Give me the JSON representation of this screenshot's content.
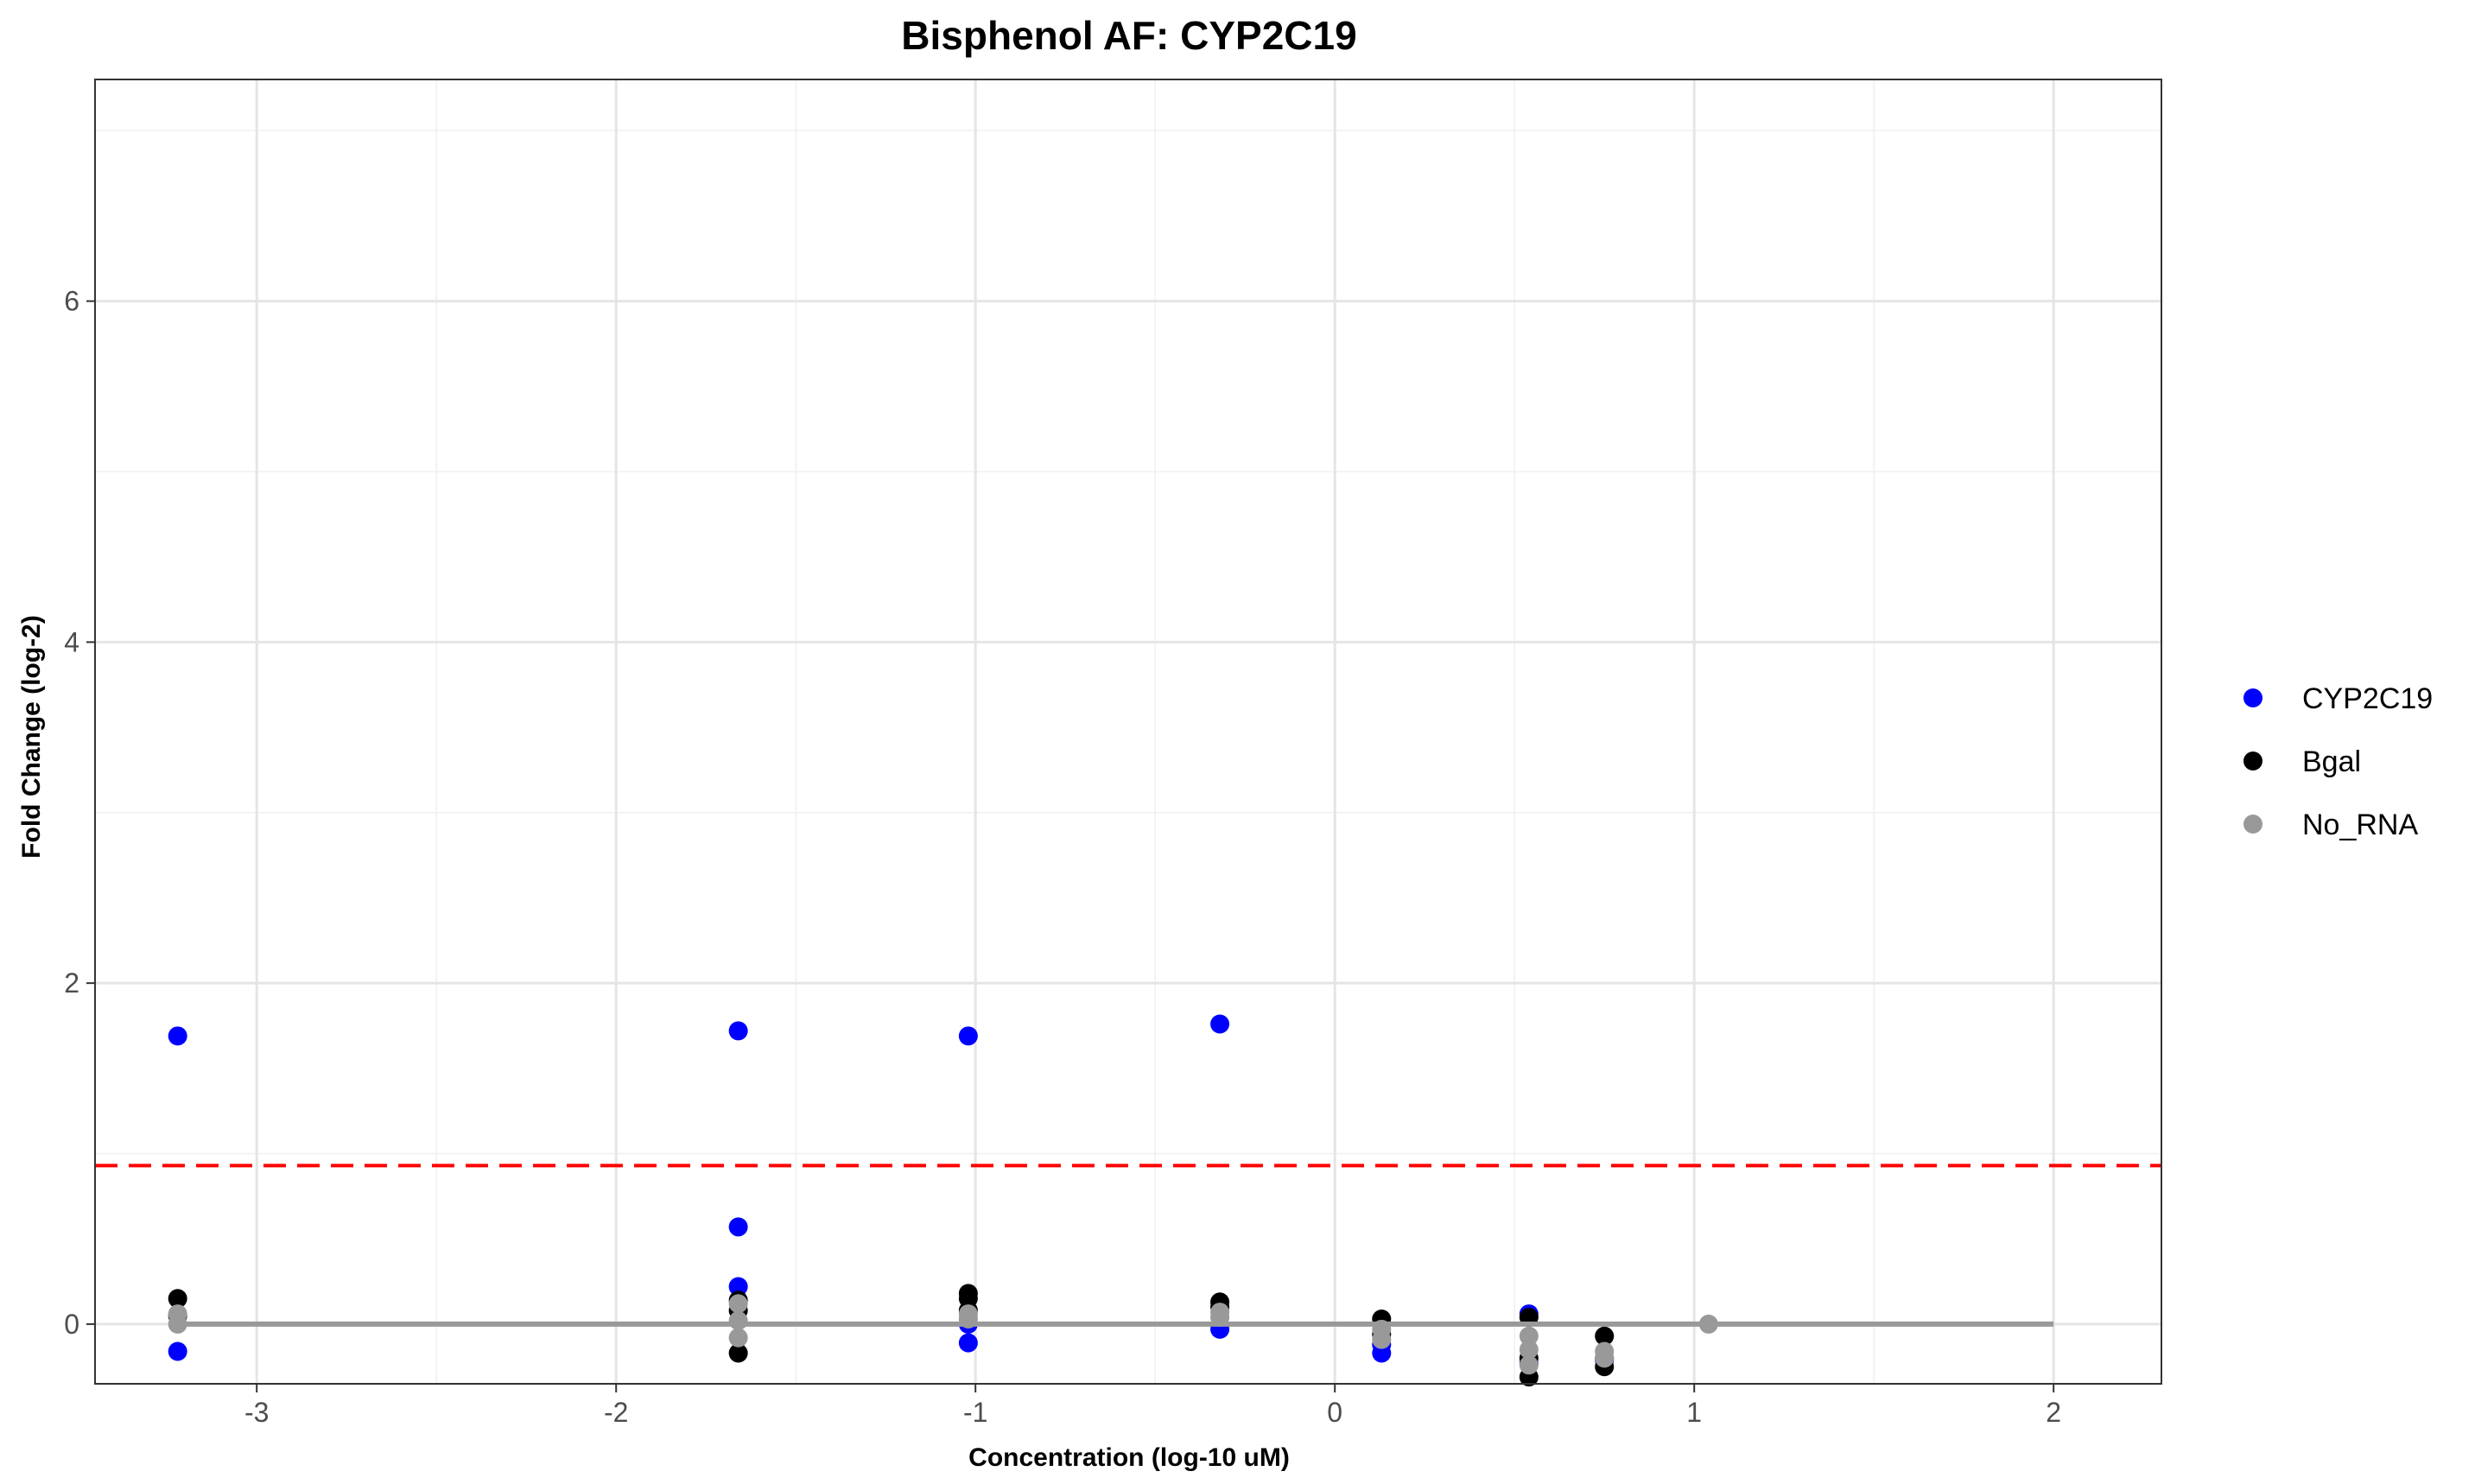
{
  "chart_data": {
    "type": "scatter",
    "title": "Bisphenol AF: CYP2C19",
    "xlabel": "Concentration (log-10 uM)",
    "ylabel": "Fold Change (log-2)",
    "xlim": [
      -3.45,
      2.3
    ],
    "ylim": [
      -0.35,
      7.3
    ],
    "x_ticks": [
      -3,
      -2,
      -1,
      0,
      1,
      2
    ],
    "x_tick_labels": [
      "-3",
      "-2",
      "-1",
      "0",
      "1",
      "2"
    ],
    "y_ticks": [
      0,
      2,
      4,
      6
    ],
    "y_tick_labels": [
      "0",
      "2",
      "4",
      "6"
    ],
    "grid": true,
    "legend_position": "right",
    "threshold_line": {
      "y": 0.93,
      "color": "#ff0000",
      "style": "dashed"
    },
    "baseline_line": {
      "x": [
        -3.22,
        2.0
      ],
      "y": [
        0,
        0
      ],
      "color": "#999999"
    },
    "series": [
      {
        "name": "CYP2C19",
        "color": "#0000ff",
        "points": [
          {
            "x": -3.22,
            "y": 1.69
          },
          {
            "x": -3.22,
            "y": -0.16
          },
          {
            "x": -1.66,
            "y": 1.72
          },
          {
            "x": -1.66,
            "y": 0.57
          },
          {
            "x": -1.66,
            "y": 0.22
          },
          {
            "x": -1.02,
            "y": 1.69
          },
          {
            "x": -1.02,
            "y": -0.11
          },
          {
            "x": -1.02,
            "y": 0.0
          },
          {
            "x": -0.32,
            "y": 1.76
          },
          {
            "x": -0.32,
            "y": -0.03
          },
          {
            "x": 0.13,
            "y": -0.17
          },
          {
            "x": 0.13,
            "y": -0.12
          },
          {
            "x": 0.54,
            "y": 0.06
          },
          {
            "x": 0.54,
            "y": -0.23
          },
          {
            "x": 0.75,
            "y": -0.21
          }
        ]
      },
      {
        "name": "Bgal",
        "color": "#000000",
        "points": [
          {
            "x": -3.22,
            "y": 0.15
          },
          {
            "x": -3.22,
            "y": 0.05
          },
          {
            "x": -1.66,
            "y": 0.14
          },
          {
            "x": -1.66,
            "y": -0.17
          },
          {
            "x": -1.66,
            "y": 0.08
          },
          {
            "x": -1.02,
            "y": 0.18
          },
          {
            "x": -1.02,
            "y": 0.15
          },
          {
            "x": -1.02,
            "y": 0.08
          },
          {
            "x": -0.32,
            "y": 0.13
          },
          {
            "x": -0.32,
            "y": 0.1
          },
          {
            "x": 0.13,
            "y": 0.03
          },
          {
            "x": 0.13,
            "y": -0.06
          },
          {
            "x": 0.54,
            "y": 0.04
          },
          {
            "x": 0.54,
            "y": -0.2
          },
          {
            "x": 0.54,
            "y": -0.31
          },
          {
            "x": 0.75,
            "y": -0.07
          },
          {
            "x": 0.75,
            "y": -0.25
          },
          {
            "x": 0.75,
            "y": -0.2
          }
        ]
      },
      {
        "name": "No_RNA",
        "color": "#999999",
        "points": [
          {
            "x": -3.22,
            "y": 0.06
          },
          {
            "x": -3.22,
            "y": 0.0
          },
          {
            "x": -1.66,
            "y": 0.12
          },
          {
            "x": -1.66,
            "y": 0.02
          },
          {
            "x": -1.66,
            "y": -0.08
          },
          {
            "x": -1.02,
            "y": 0.06
          },
          {
            "x": -1.02,
            "y": 0.03
          },
          {
            "x": -0.32,
            "y": 0.07
          },
          {
            "x": -0.32,
            "y": 0.04
          },
          {
            "x": 0.13,
            "y": -0.03
          },
          {
            "x": 0.13,
            "y": -0.09
          },
          {
            "x": 0.54,
            "y": -0.07
          },
          {
            "x": 0.54,
            "y": -0.15
          },
          {
            "x": 0.54,
            "y": -0.24
          },
          {
            "x": 0.75,
            "y": -0.16
          },
          {
            "x": 0.75,
            "y": -0.2
          },
          {
            "x": 1.04,
            "y": 0.0
          }
        ]
      }
    ]
  }
}
